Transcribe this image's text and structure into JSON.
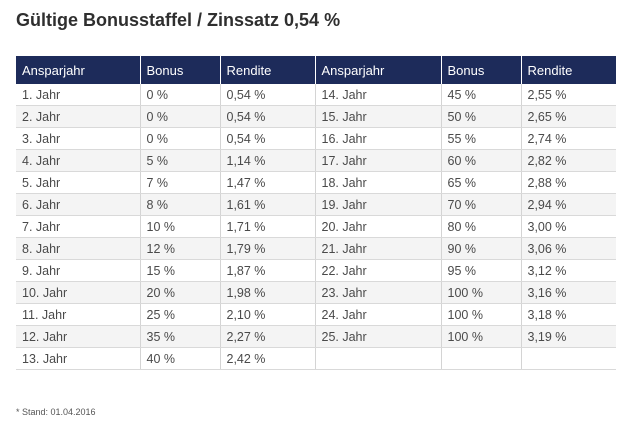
{
  "title": "Gültige Bonusstaffel / Zinssatz 0,54 %",
  "table": {
    "headers": [
      "Ansparjahr",
      "Bonus",
      "Rendite",
      "Ansparjahr",
      "Bonus",
      "Rendite"
    ],
    "rows": [
      [
        "1. Jahr",
        "0 %",
        "0,54 %",
        "14. Jahr",
        "45 %",
        "2,55 %"
      ],
      [
        "2. Jahr",
        "0 %",
        "0,54 %",
        "15. Jahr",
        "50 %",
        "2,65 %"
      ],
      [
        "3. Jahr",
        "0 %",
        "0,54 %",
        "16. Jahr",
        "55 %",
        "2,74 %"
      ],
      [
        "4. Jahr",
        "5 %",
        "1,14 %",
        "17. Jahr",
        "60 %",
        "2,82 %"
      ],
      [
        "5. Jahr",
        "7 %",
        "1,47 %",
        "18. Jahr",
        "65 %",
        "2,88 %"
      ],
      [
        "6. Jahr",
        "8 %",
        "1,61 %",
        "19. Jahr",
        "70 %",
        "2,94 %"
      ],
      [
        "7. Jahr",
        "10 %",
        "1,71 %",
        "20. Jahr",
        "80 %",
        "3,00 %"
      ],
      [
        "8. Jahr",
        "12 %",
        "1,79 %",
        "21. Jahr",
        "90 %",
        "3,06 %"
      ],
      [
        "9. Jahr",
        "15 %",
        "1,87 %",
        "22. Jahr",
        "95 %",
        "3,12 %"
      ],
      [
        "10. Jahr",
        "20 %",
        "1,98 %",
        "23. Jahr",
        "100 %",
        "3,16 %"
      ],
      [
        "11. Jahr",
        "25 %",
        "2,10 %",
        "24. Jahr",
        "100 %",
        "3,18 %"
      ],
      [
        "12. Jahr",
        "35 %",
        "2,27 %",
        "25. Jahr",
        "100 %",
        "3,19 %"
      ],
      [
        "13. Jahr",
        "40 %",
        "2,42 %",
        "",
        "",
        ""
      ]
    ]
  },
  "footnote": "* Stand: 01.04.2016"
}
